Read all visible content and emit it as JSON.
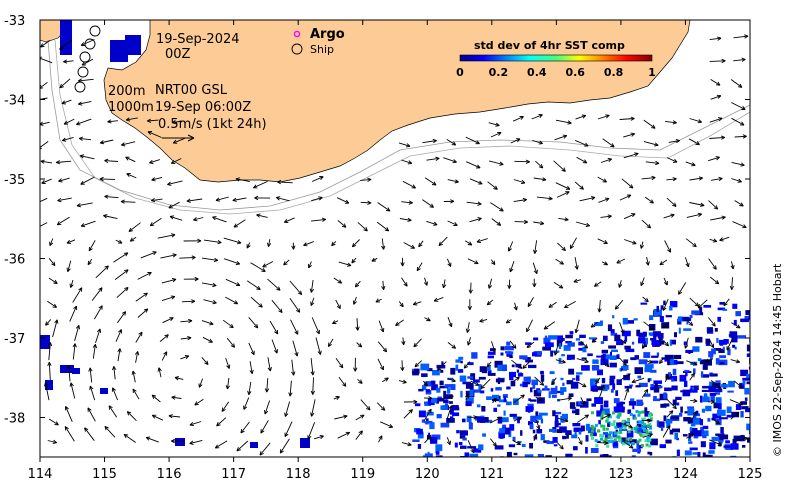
{
  "map": {
    "date_line": "19-Sep-2024",
    "time_line": "00Z",
    "isobath_200": "200m",
    "isobath_1000": "1000m",
    "product_line": "NRT00 GSL",
    "valid_time": "19-Sep 06:00Z",
    "scale_label": "0.5m/s (1kt 24h)",
    "lon_ticks": [
      "114",
      "115",
      "116",
      "117",
      "118",
      "119",
      "120",
      "121",
      "122",
      "123",
      "124",
      "125"
    ],
    "lat_ticks": [
      "-33",
      "-34",
      "-35",
      "-36",
      "-37",
      "-38"
    ],
    "credit": "© IMOS 22-Sep-2024 14:45 Hobart",
    "land_color": "#fdcb95"
  },
  "legend": {
    "argo_label": "Argo",
    "ship_label": "Ship",
    "argo_color": "#ff00ff"
  },
  "colorbar": {
    "title": "std dev of 4hr SST comp",
    "ticks": [
      "0",
      "0.2",
      "0.4",
      "0.6",
      "0.8",
      "1"
    ]
  }
}
